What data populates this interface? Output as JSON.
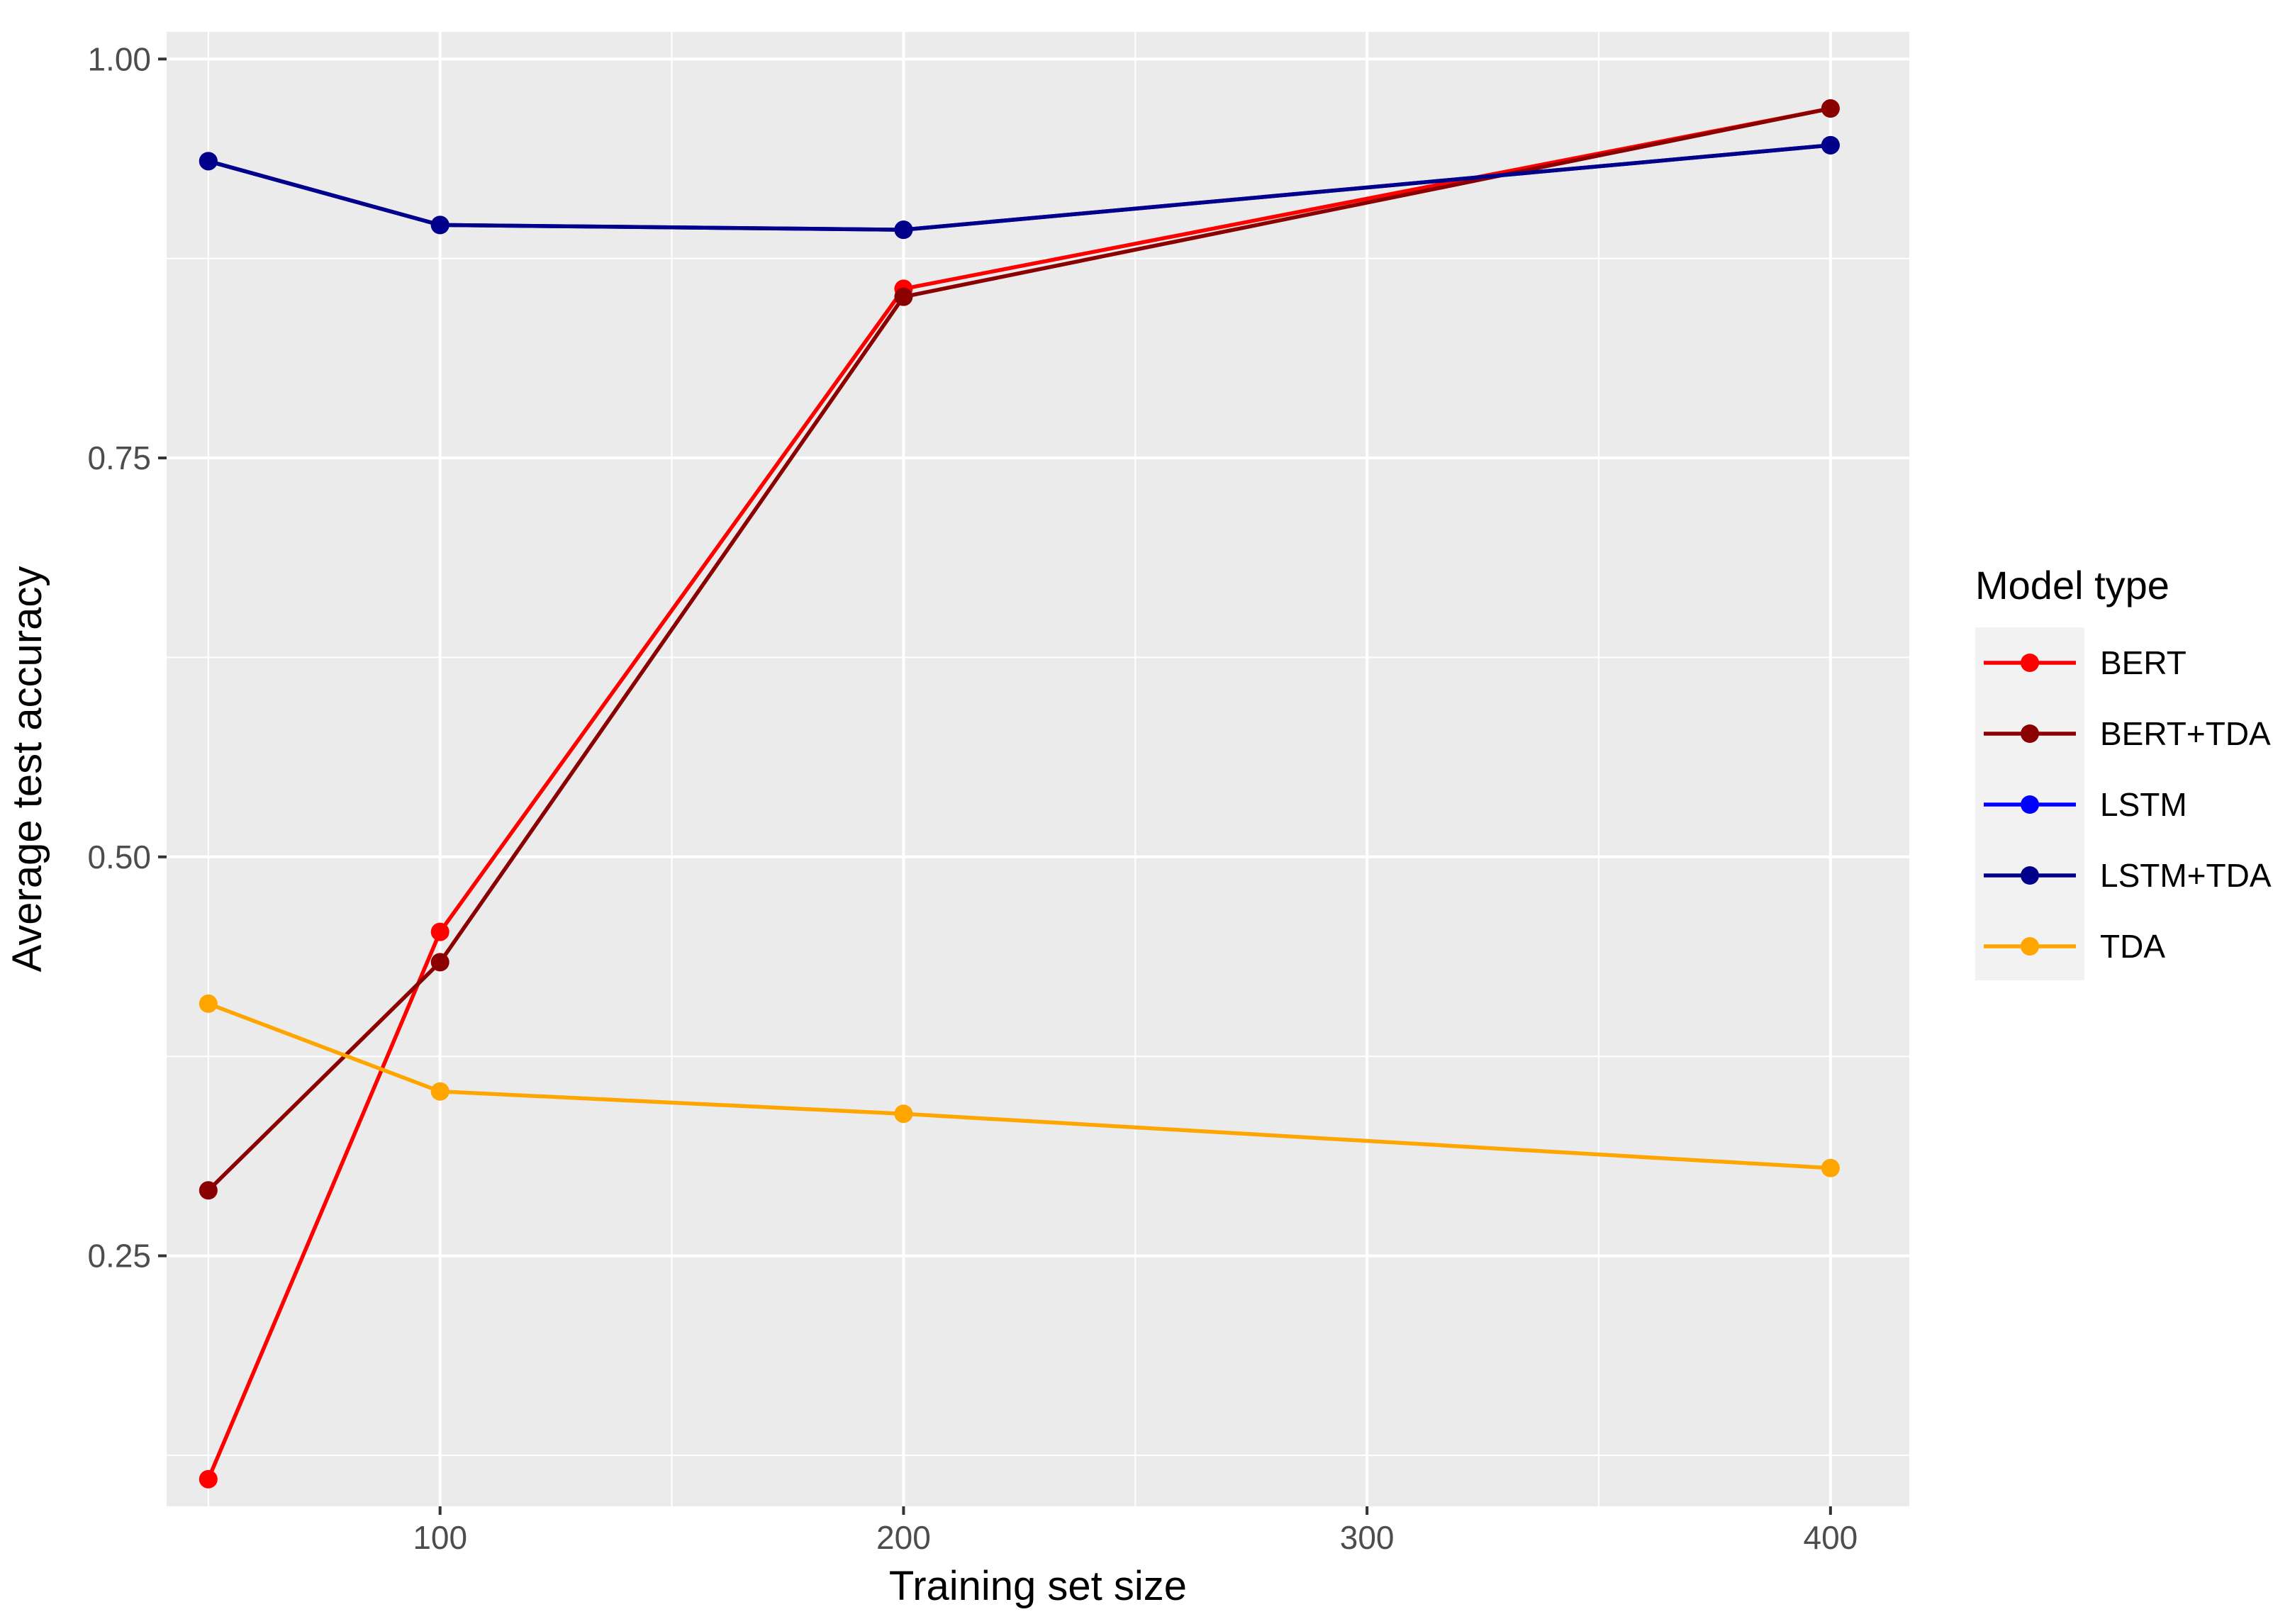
{
  "chart_data": {
    "type": "line",
    "xlabel": "Training set size",
    "ylabel": "Average test accuracy",
    "xlim": [
      41,
      417
    ],
    "ylim": [
      0.093,
      1.017
    ],
    "x_ticks": [
      100,
      200,
      300,
      400
    ],
    "x_tick_labels": [
      "100",
      "200",
      "300",
      "400"
    ],
    "y_ticks": [
      0.25,
      0.5,
      0.75,
      1.0
    ],
    "y_tick_labels": [
      "0.25",
      "0.50",
      "0.75",
      "1.00"
    ],
    "x_minor_gridlines": [
      50,
      150,
      250,
      350
    ],
    "y_minor_gridlines": [
      0.125,
      0.375,
      0.625,
      0.875
    ],
    "grid": true,
    "background": "#ebebeb",
    "legend": {
      "title": "Model type",
      "position": "right"
    },
    "x": [
      50,
      100,
      200,
      400
    ],
    "series": [
      {
        "name": "BERT",
        "color": "#ff0000",
        "values": [
          0.11,
          0.453,
          0.856,
          0.969
        ]
      },
      {
        "name": "BERT+TDA",
        "color": "#8b0000",
        "values": [
          0.291,
          0.434,
          0.851,
          0.969
        ]
      },
      {
        "name": "LSTM",
        "color": "#0000ff",
        "values": [
          0.936,
          0.896,
          0.893,
          0.946
        ]
      },
      {
        "name": "LSTM+TDA",
        "color": "#00008b",
        "values": [
          0.936,
          0.896,
          0.893,
          0.946
        ]
      },
      {
        "name": "TDA",
        "color": "#ffa500",
        "values": [
          0.408,
          0.353,
          0.339,
          0.305
        ]
      }
    ]
  }
}
